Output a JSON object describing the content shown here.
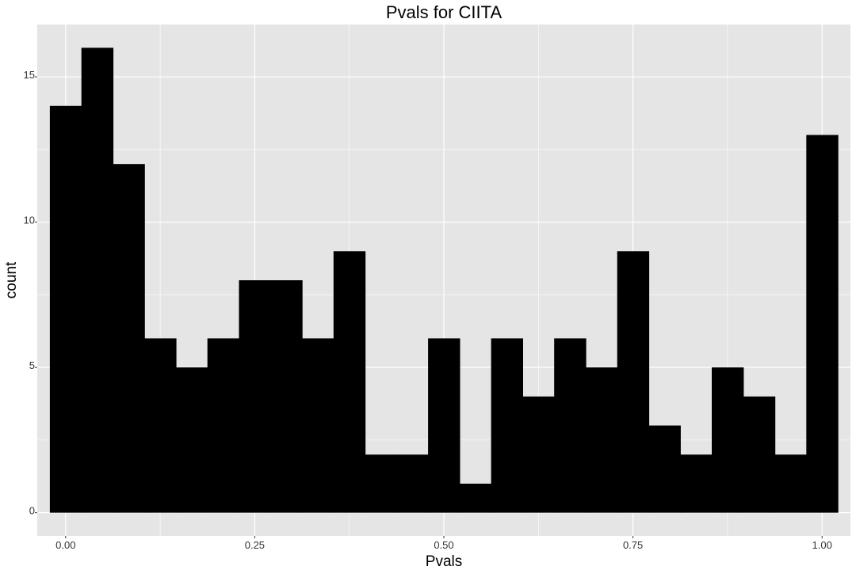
{
  "chart_data": {
    "type": "bar",
    "title": "Pvals for CIITA",
    "xlabel": "Pvals",
    "ylabel": "count",
    "xlim": [
      -0.0375,
      1.0375
    ],
    "ylim": [
      -0.8,
      16.8
    ],
    "x_ticks": [
      {
        "value": 0.0,
        "label": "0.00"
      },
      {
        "value": 0.25,
        "label": "0.25"
      },
      {
        "value": 0.5,
        "label": "0.50"
      },
      {
        "value": 0.75,
        "label": "0.75"
      },
      {
        "value": 1.0,
        "label": "1.00"
      }
    ],
    "y_ticks": [
      {
        "value": 0,
        "label": "0"
      },
      {
        "value": 5,
        "label": "5"
      },
      {
        "value": 10,
        "label": "10"
      },
      {
        "value": 15,
        "label": "15"
      }
    ],
    "bin_width": 0.0417,
    "bin_centers": [
      0.0,
      0.0417,
      0.0833,
      0.125,
      0.1667,
      0.2083,
      0.25,
      0.2917,
      0.3333,
      0.375,
      0.4167,
      0.4583,
      0.5,
      0.5417,
      0.5833,
      0.625,
      0.6667,
      0.7083,
      0.75,
      0.7917,
      0.8333,
      0.875,
      0.9167,
      0.9583,
      1.0
    ],
    "values": [
      14,
      16,
      12,
      6,
      5,
      6,
      8,
      8,
      6,
      9,
      2,
      2,
      6,
      1,
      6,
      4,
      6,
      5,
      9,
      3,
      2,
      5,
      4,
      2,
      13
    ],
    "bar_color": "#000000",
    "panel_background": "#e5e5e5",
    "grid_color": "#ffffff",
    "grid": true,
    "legend": "none"
  }
}
